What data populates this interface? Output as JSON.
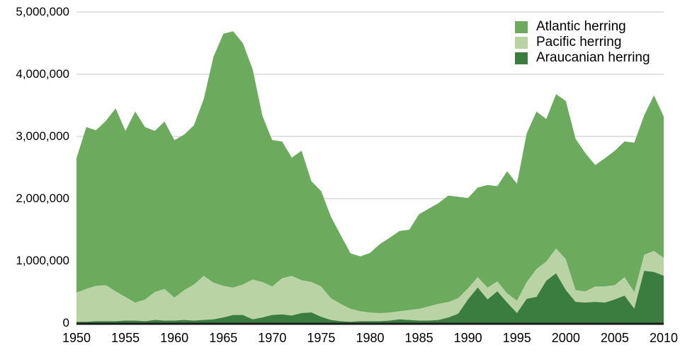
{
  "chart_data": {
    "type": "area",
    "stacked": true,
    "x_label": "",
    "y_label": "",
    "x": [
      1950,
      1951,
      1952,
      1953,
      1954,
      1955,
      1956,
      1957,
      1958,
      1959,
      1960,
      1961,
      1962,
      1963,
      1964,
      1965,
      1966,
      1967,
      1968,
      1969,
      1970,
      1971,
      1972,
      1973,
      1974,
      1975,
      1976,
      1977,
      1978,
      1979,
      1980,
      1981,
      1982,
      1983,
      1984,
      1985,
      1986,
      1987,
      1988,
      1989,
      1990,
      1991,
      1992,
      1993,
      1994,
      1995,
      1996,
      1997,
      1998,
      1999,
      2000,
      2001,
      2002,
      2003,
      2004,
      2005,
      2006,
      2007,
      2008,
      2009,
      2010
    ],
    "series": [
      {
        "name": "Araucanian herring",
        "color": "#3b7d3f",
        "values": [
          20000,
          20000,
          30000,
          30000,
          30000,
          40000,
          40000,
          30000,
          50000,
          40000,
          40000,
          50000,
          40000,
          50000,
          60000,
          90000,
          130000,
          130000,
          60000,
          90000,
          130000,
          140000,
          120000,
          160000,
          170000,
          100000,
          50000,
          30000,
          20000,
          30000,
          30000,
          30000,
          40000,
          60000,
          50000,
          40000,
          40000,
          50000,
          90000,
          150000,
          380000,
          570000,
          380000,
          510000,
          330000,
          160000,
          390000,
          420000,
          680000,
          800000,
          530000,
          340000,
          330000,
          340000,
          330000,
          380000,
          440000,
          230000,
          840000,
          820000,
          760000
        ]
      },
      {
        "name": "Pacific herring",
        "color": "#b9d3a4",
        "values": [
          470000,
          530000,
          570000,
          580000,
          480000,
          380000,
          290000,
          350000,
          450000,
          510000,
          370000,
          480000,
          580000,
          710000,
          590000,
          510000,
          440000,
          490000,
          640000,
          570000,
          460000,
          580000,
          640000,
          530000,
          490000,
          490000,
          350000,
          280000,
          210000,
          160000,
          140000,
          130000,
          130000,
          130000,
          160000,
          190000,
          230000,
          260000,
          250000,
          250000,
          180000,
          170000,
          190000,
          160000,
          150000,
          200000,
          270000,
          450000,
          310000,
          400000,
          500000,
          190000,
          180000,
          250000,
          260000,
          230000,
          300000,
          270000,
          260000,
          340000,
          290000
        ]
      },
      {
        "name": "Atlantic herring",
        "color": "#6cab5d",
        "values": [
          2160000,
          2600000,
          2500000,
          2640000,
          2940000,
          2670000,
          3070000,
          2770000,
          2590000,
          2690000,
          2530000,
          2500000,
          2560000,
          2840000,
          3630000,
          4050000,
          4120000,
          3880000,
          3380000,
          2670000,
          2350000,
          2200000,
          1900000,
          2080000,
          1620000,
          1530000,
          1310000,
          1100000,
          890000,
          880000,
          960000,
          1110000,
          1200000,
          1290000,
          1290000,
          1520000,
          1570000,
          1620000,
          1710000,
          1630000,
          1450000,
          1440000,
          1650000,
          1530000,
          1960000,
          1880000,
          2390000,
          2530000,
          2290000,
          2480000,
          2540000,
          2430000,
          2220000,
          1950000,
          2060000,
          2160000,
          2180000,
          2400000,
          2240000,
          2500000,
          2270000
        ]
      }
    ],
    "ylim": [
      0,
      5000000
    ],
    "yticks": [
      0,
      1000000,
      2000000,
      3000000,
      4000000,
      5000000
    ],
    "ytick_labels": [
      "0",
      "1,000,000",
      "2,000,000",
      "3,000,000",
      "4,000,000",
      "5,000,000"
    ],
    "xticks": [
      1950,
      1955,
      1960,
      1965,
      1970,
      1975,
      1980,
      1985,
      1990,
      1995,
      2000,
      2005,
      2010
    ],
    "grid": true,
    "gridline_color": "#c6c6c6",
    "axis_line_color": "#1b1b1b",
    "legend_position": "top-right",
    "legend": [
      {
        "label": "Atlantic herring",
        "color": "#6cab5d"
      },
      {
        "label": "Pacific herring",
        "color": "#b9d3a4"
      },
      {
        "label": "Araucanian herring",
        "color": "#3b7d3f"
      }
    ]
  }
}
